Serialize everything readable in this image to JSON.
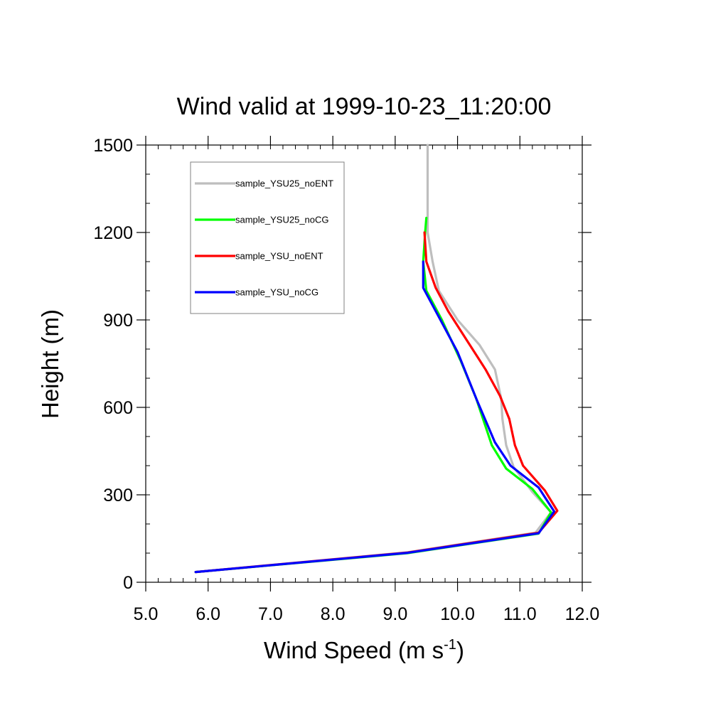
{
  "chart_data": {
    "type": "line",
    "title": "Wind valid at 1999-10-23_11:20:00",
    "xlabel": {
      "main": "Wind Speed (m s",
      "sup": "-1",
      "close": ")"
    },
    "ylabel": "Height (m)",
    "xlim": [
      5.0,
      12.0
    ],
    "ylim": [
      0,
      1500
    ],
    "xticks": [
      "5.0",
      "6.0",
      "7.0",
      "8.0",
      "9.0",
      "10.0",
      "11.0",
      "12.0"
    ],
    "yticks": [
      "0",
      "300",
      "600",
      "900",
      "1200",
      "1500"
    ],
    "legend_position": "top-left",
    "grid": false,
    "series": [
      {
        "name": "sample_YSU25_noENT",
        "color": "#bebebe",
        "points": [
          [
            5.8,
            35
          ],
          [
            9.2,
            103
          ],
          [
            11.25,
            170
          ],
          [
            11.5,
            240
          ],
          [
            11.2,
            310
          ],
          [
            10.9,
            395
          ],
          [
            10.78,
            470
          ],
          [
            10.72,
            560
          ],
          [
            10.7,
            630
          ],
          [
            10.6,
            730
          ],
          [
            10.35,
            815
          ],
          [
            10.0,
            900
          ],
          [
            9.7,
            1000
          ],
          [
            9.6,
            1100
          ],
          [
            9.52,
            1200
          ],
          [
            9.52,
            1500
          ]
        ]
      },
      {
        "name": "sample_YSU25_noCG",
        "color": "#00ff00",
        "points": [
          [
            5.8,
            35
          ],
          [
            9.2,
            100
          ],
          [
            11.3,
            167
          ],
          [
            11.5,
            240
          ],
          [
            11.2,
            320
          ],
          [
            10.78,
            390
          ],
          [
            10.55,
            470
          ],
          [
            10.3,
            630
          ],
          [
            10.05,
            760
          ],
          [
            9.75,
            900
          ],
          [
            9.5,
            1000
          ],
          [
            9.45,
            1100
          ],
          [
            9.48,
            1200
          ],
          [
            9.5,
            1250
          ]
        ]
      },
      {
        "name": "sample_YSU_noENT",
        "color": "#ff0000",
        "points": [
          [
            5.8,
            35
          ],
          [
            9.2,
            102
          ],
          [
            11.3,
            170
          ],
          [
            11.6,
            245
          ],
          [
            11.4,
            315
          ],
          [
            11.05,
            400
          ],
          [
            10.92,
            470
          ],
          [
            10.83,
            560
          ],
          [
            10.68,
            640
          ],
          [
            10.45,
            730
          ],
          [
            10.15,
            830
          ],
          [
            9.85,
            930
          ],
          [
            9.65,
            1010
          ],
          [
            9.5,
            1100
          ],
          [
            9.47,
            1200
          ]
        ]
      },
      {
        "name": "sample_YSU_noCG",
        "color": "#0000ff",
        "points": [
          [
            5.8,
            35
          ],
          [
            9.2,
            101
          ],
          [
            11.3,
            168
          ],
          [
            11.55,
            243
          ],
          [
            11.3,
            325
          ],
          [
            10.85,
            400
          ],
          [
            10.6,
            480
          ],
          [
            10.3,
            630
          ],
          [
            10.0,
            790
          ],
          [
            9.7,
            910
          ],
          [
            9.45,
            1010
          ],
          [
            9.45,
            1100
          ]
        ]
      }
    ]
  }
}
